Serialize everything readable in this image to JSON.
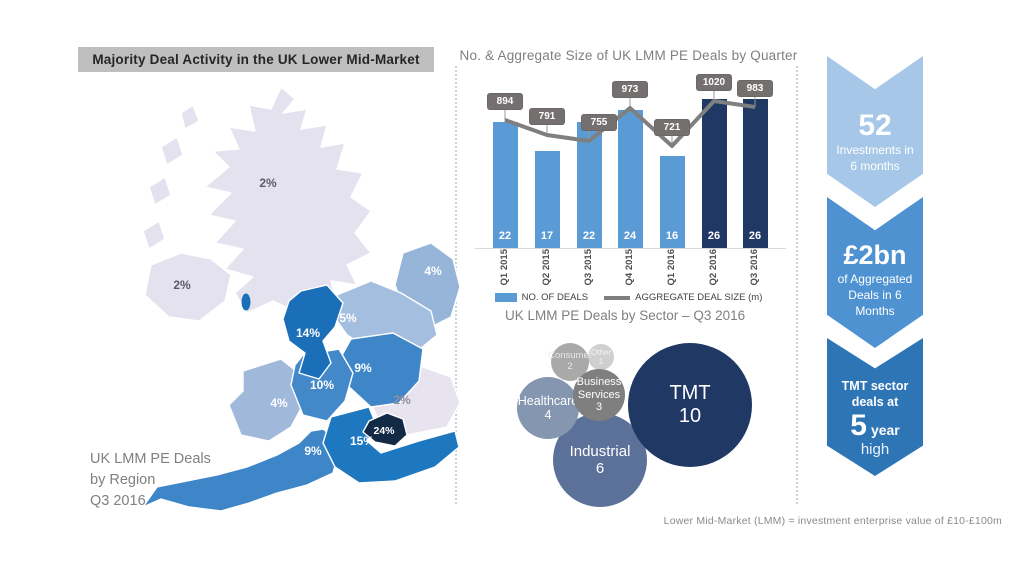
{
  "page": {
    "title": "Majority Deal Activity in the UK Lower Mid-Market",
    "footnote": "Lower Mid-Market  (LMM) = investment  enterprise value of £10-£100m"
  },
  "map": {
    "caption": "UK LMM PE Deals\nby Region\nQ3 2016",
    "regions": [
      {
        "name": "Scotland",
        "value": "2%"
      },
      {
        "name": "Northern Ireland",
        "value": "2%"
      },
      {
        "name": "North East",
        "value": "4%"
      },
      {
        "name": "Yorkshire",
        "value": "5%"
      },
      {
        "name": "North West",
        "value": "14%"
      },
      {
        "name": "East Midlands",
        "value": "9%"
      },
      {
        "name": "West Midlands",
        "value": "10%"
      },
      {
        "name": "Wales",
        "value": "4%"
      },
      {
        "name": "East of England",
        "value": "2%"
      },
      {
        "name": "London",
        "value": "24%"
      },
      {
        "name": "South East",
        "value": "15%"
      },
      {
        "name": "South West",
        "value": "9%"
      }
    ]
  },
  "chart_data": [
    {
      "type": "bar",
      "title": "No. & Aggregate Size of UK LMM PE Deals by Quarter",
      "categories": [
        "Q1 2015",
        "Q2 2015",
        "Q3 2015",
        "Q4 2015",
        "Q1 2016",
        "Q2 2016",
        "Q3 2016"
      ],
      "series": [
        {
          "name": "NO. OF DEALS",
          "type": "bar",
          "values": [
            22,
            17,
            22,
            24,
            16,
            26,
            26
          ]
        },
        {
          "name": "AGGREGATE DEAL SIZE (m)",
          "type": "line",
          "values": [
            894,
            791,
            755,
            973,
            721,
            1020,
            983
          ]
        }
      ],
      "bar_colors": [
        "#5b9bd5",
        "#5b9bd5",
        "#5b9bd5",
        "#5b9bd5",
        "#5b9bd5",
        "#1f3864",
        "#1f3864"
      ],
      "line_color": "#7f7f7f",
      "legend_position": "bottom",
      "grid": false
    },
    {
      "type": "pie",
      "title": "UK LMM PE Deals by Sector – Q3 2016",
      "points": [
        {
          "label": "TMT",
          "value": 10,
          "color": "#1f3864"
        },
        {
          "label": "Industrial",
          "value": 6,
          "color": "#5b7199"
        },
        {
          "label": "Healthcare",
          "value": 4,
          "color": "#8496b0"
        },
        {
          "label": "Business Services",
          "value": 3,
          "color": "#7f7f7f"
        },
        {
          "label": "Consumer",
          "value": 2,
          "color": "#a9a9a9"
        },
        {
          "label": "Other",
          "value": 1,
          "color": "#cfcfcf"
        }
      ]
    }
  ],
  "highlights": [
    {
      "big": "52",
      "sub": "Investments in\n6 months",
      "color": "#a7c7e8"
    },
    {
      "big": "£2bn",
      "sub": "of Aggregated\nDeals in 6\nMonths",
      "color": "#4e92d2"
    },
    {
      "pre": "TMT sector\ndeals at",
      "big": "5",
      "big_suffix": "year",
      "post": "high",
      "color": "#2e75b6"
    }
  ],
  "colors": {
    "bar_light": "#5b9bd5",
    "bar_dark": "#1f3864",
    "line": "#7f7f7f",
    "map_high": "#1b6fb8",
    "map_low": "#e3e2ee"
  }
}
